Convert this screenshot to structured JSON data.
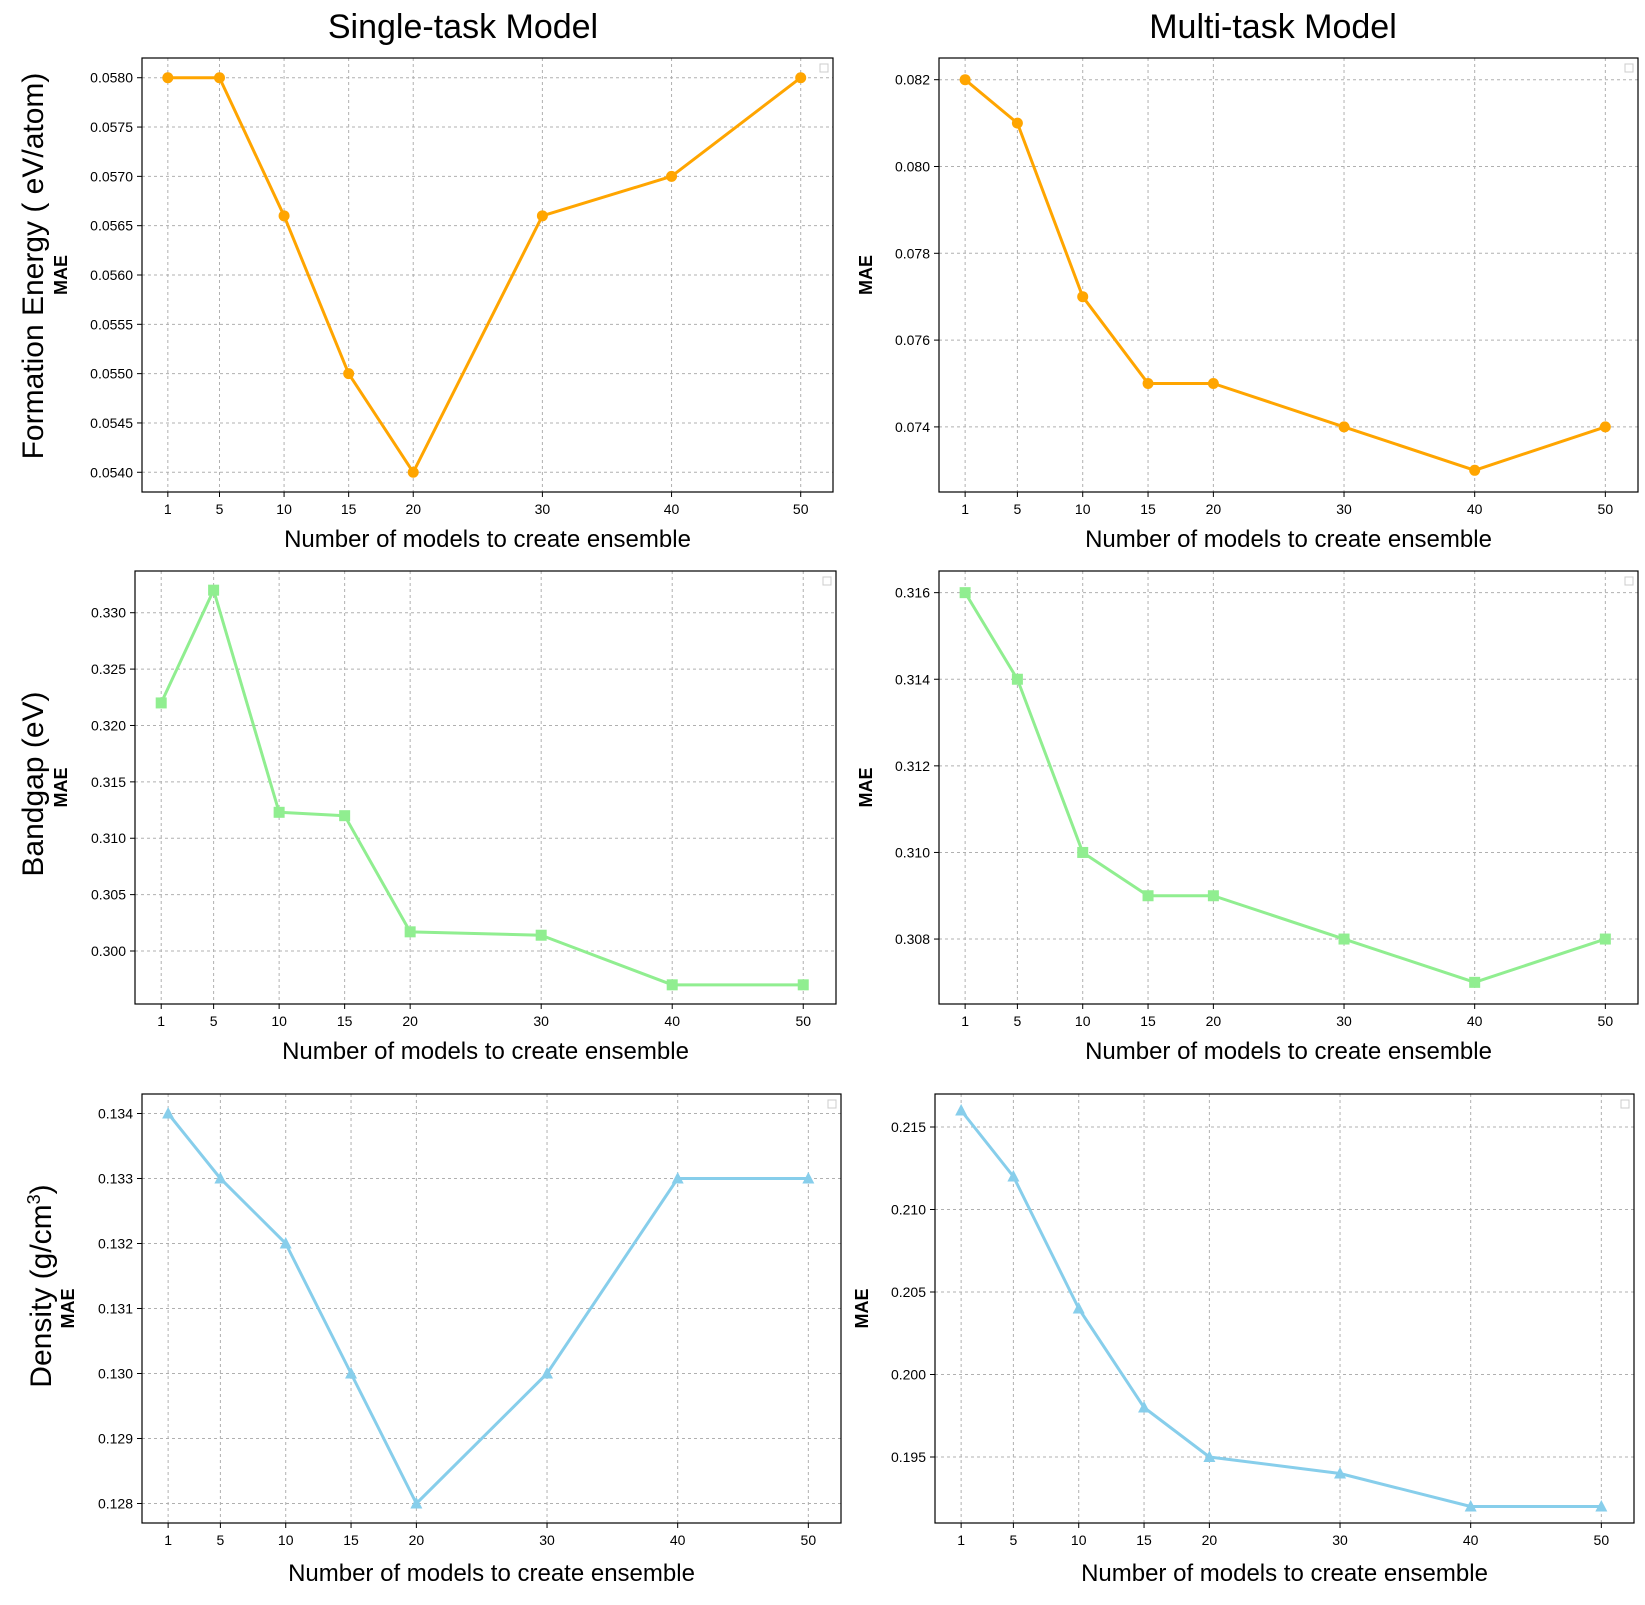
{
  "columns": {
    "single_title": "Single-task Model",
    "multi_title": "Multi-task Model"
  },
  "rows": {
    "formation_label": "Formation Energy ( eV/atom)",
    "bandgap_label": "Bandgap (eV)",
    "density_label_prefix": "Density (g/cm",
    "density_label_sup": "3",
    "density_label_suffix": ")"
  },
  "colors": {
    "orange": "#FFA500",
    "green": "#90EE90",
    "blue": "#87CEEB"
  },
  "chart_data": [
    {
      "id": "fe-single",
      "type": "line",
      "marker": "circle",
      "color": "#FFA500",
      "x": [
        1,
        5,
        10,
        15,
        20,
        30,
        40,
        50
      ],
      "y": [
        0.058,
        0.058,
        0.0566,
        0.055,
        0.054,
        0.0566,
        0.057,
        0.058
      ],
      "xticks": [
        "1",
        "5",
        "10",
        "15",
        "20",
        "30",
        "40",
        "50"
      ],
      "yticks": [
        "0.0540",
        "0.0545",
        "0.0550",
        "0.0555",
        "0.0560",
        "0.0565",
        "0.0570",
        "0.0575",
        "0.0580"
      ],
      "ylim": [
        0.0538,
        0.0582
      ],
      "xlim": [
        -1,
        52.5
      ],
      "xlabel": "Number of models to create ensemble",
      "ylabel": "MAE",
      "grid": true,
      "legend": "top-right (empty)"
    },
    {
      "id": "fe-multi",
      "type": "line",
      "marker": "circle",
      "color": "#FFA500",
      "x": [
        1,
        5,
        10,
        15,
        20,
        30,
        40,
        50
      ],
      "y": [
        0.082,
        0.081,
        0.077,
        0.075,
        0.075,
        0.074,
        0.073,
        0.074
      ],
      "xticks": [
        "1",
        "5",
        "10",
        "15",
        "20",
        "30",
        "40",
        "50"
      ],
      "yticks": [
        "0.074",
        "0.076",
        "0.078",
        "0.080",
        "0.082"
      ],
      "ylim": [
        0.0725,
        0.0825
      ],
      "xlim": [
        -1,
        52.5
      ],
      "xlabel": "Number of models to create ensemble",
      "ylabel": "MAE",
      "grid": true,
      "legend": "top-right (empty)"
    },
    {
      "id": "bg-single",
      "type": "line",
      "marker": "square",
      "color": "#90EE90",
      "x": [
        1,
        5,
        10,
        15,
        20,
        30,
        40,
        50
      ],
      "y": [
        0.322,
        0.332,
        0.3123,
        0.312,
        0.3017,
        0.3014,
        0.297,
        0.297
      ],
      "xticks": [
        "1",
        "5",
        "10",
        "15",
        "20",
        "30",
        "40",
        "50"
      ],
      "yticks": [
        "0.300",
        "0.305",
        "0.310",
        "0.315",
        "0.320",
        "0.325",
        "0.330"
      ],
      "ylim": [
        0.2953,
        0.3337
      ],
      "xlim": [
        -1,
        52.5
      ],
      "xlabel": "Number of models to create ensemble",
      "ylabel": "MAE",
      "grid": true,
      "legend": "top-right (empty)"
    },
    {
      "id": "bg-multi",
      "type": "line",
      "marker": "square",
      "color": "#90EE90",
      "x": [
        1,
        5,
        10,
        15,
        20,
        30,
        40,
        50
      ],
      "y": [
        0.316,
        0.314,
        0.31,
        0.309,
        0.309,
        0.308,
        0.307,
        0.308
      ],
      "xticks": [
        "1",
        "5",
        "10",
        "15",
        "20",
        "30",
        "40",
        "50"
      ],
      "yticks": [
        "0.308",
        "0.310",
        "0.312",
        "0.314",
        "0.316"
      ],
      "ylim": [
        0.3065,
        0.3165
      ],
      "xlim": [
        -1,
        52.5
      ],
      "xlabel": "Number of models to create ensemble",
      "ylabel": "MAE",
      "grid": true,
      "legend": "top-right (empty)"
    },
    {
      "id": "de-single",
      "type": "line",
      "marker": "triangle",
      "color": "#87CEEB",
      "x": [
        1,
        5,
        10,
        15,
        20,
        30,
        40,
        50
      ],
      "y": [
        0.134,
        0.133,
        0.132,
        0.13,
        0.128,
        0.13,
        0.133,
        0.133
      ],
      "xticks": [
        "1",
        "5",
        "10",
        "15",
        "20",
        "30",
        "40",
        "50"
      ],
      "yticks": [
        "0.128",
        "0.129",
        "0.130",
        "0.131",
        "0.132",
        "0.133",
        "0.134"
      ],
      "ylim": [
        0.1277,
        0.1343
      ],
      "xlim": [
        -1,
        52.5
      ],
      "xlabel": "Number of models to create ensemble",
      "ylabel": "MAE",
      "grid": true,
      "legend": "top-right (empty)"
    },
    {
      "id": "de-multi",
      "type": "line",
      "marker": "triangle",
      "color": "#87CEEB",
      "x": [
        1,
        5,
        10,
        15,
        20,
        30,
        40,
        50
      ],
      "y": [
        0.216,
        0.212,
        0.204,
        0.198,
        0.195,
        0.194,
        0.192,
        0.192
      ],
      "xticks": [
        "1",
        "5",
        "10",
        "15",
        "20",
        "30",
        "40",
        "50"
      ],
      "yticks": [
        "0.195",
        "0.200",
        "0.205",
        "0.210",
        "0.215"
      ],
      "ylim": [
        0.191,
        0.217
      ],
      "xlim": [
        -1,
        52.5
      ],
      "xlabel": "Number of models to create ensemble",
      "ylabel": "MAE",
      "grid": true,
      "legend": "top-right (empty)"
    }
  ]
}
